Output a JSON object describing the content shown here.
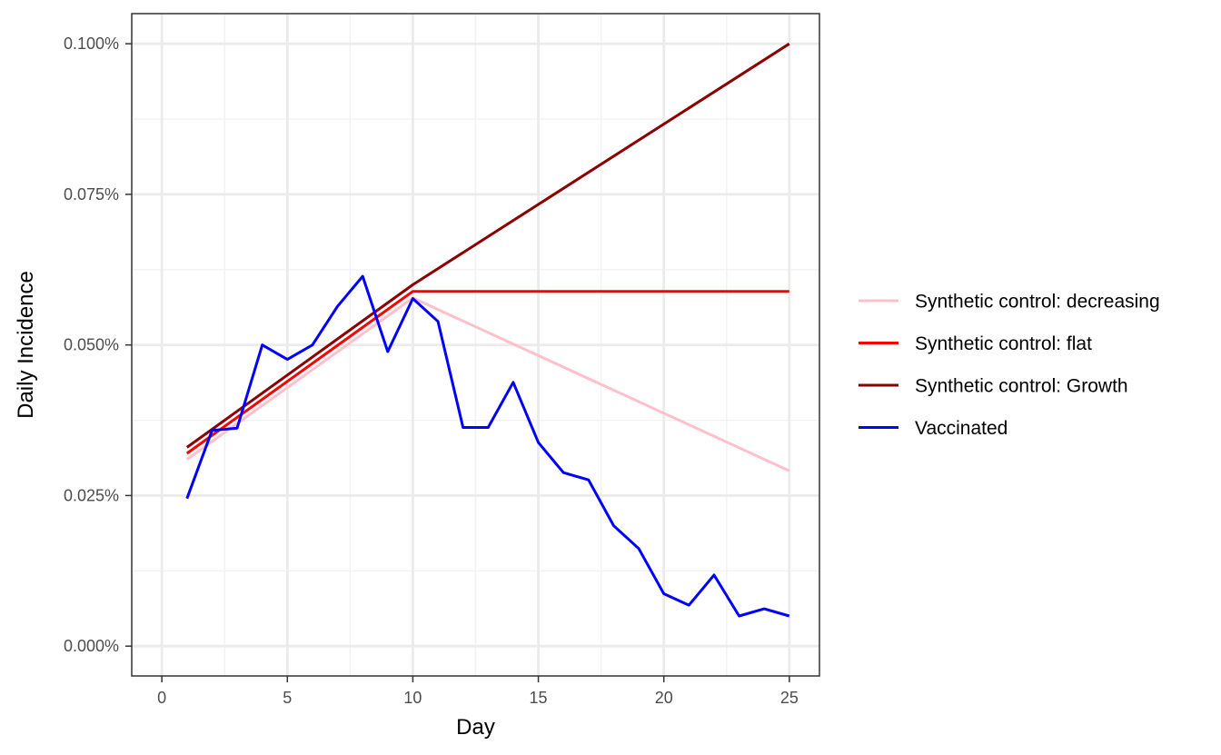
{
  "chart_data": {
    "type": "line",
    "xlabel": "Day",
    "ylabel": "Daily Incidence",
    "xlim": [
      -1.2,
      26.2
    ],
    "ylim": [
      -4.95e-05,
      0.00105
    ],
    "x_ticks": [
      0,
      5,
      10,
      15,
      20,
      25
    ],
    "x_tick_labels": [
      "0",
      "5",
      "10",
      "15",
      "20",
      "25"
    ],
    "y_ticks": [
      0.0,
      0.00025,
      0.0005,
      0.00075,
      0.001
    ],
    "y_tick_labels": [
      "0.000%",
      "0.025%",
      "0.050%",
      "0.075%",
      "0.100%"
    ],
    "grid": true,
    "legend_position": "right",
    "series": [
      {
        "name": "Synthetic control: decreasing",
        "color": "#FFC0CB",
        "x": [
          1,
          10,
          25
        ],
        "y": [
          0.00031,
          0.000578,
          0.000291
        ]
      },
      {
        "name": "Synthetic control: flat",
        "color": "#FF0000",
        "x": [
          1,
          10,
          25
        ],
        "y": [
          0.00032,
          0.000589,
          0.000589
        ]
      },
      {
        "name": "Synthetic control: Growth",
        "color": "#8B0000",
        "x": [
          1,
          10,
          25
        ],
        "y": [
          0.00033,
          0.0006,
          0.001
        ]
      },
      {
        "name": "Vaccinated",
        "color": "#0000FF",
        "x": [
          1,
          2,
          3,
          4,
          5,
          6,
          7,
          8,
          9,
          10,
          11,
          12,
          13,
          14,
          15,
          16,
          17,
          18,
          19,
          20,
          21,
          22,
          23,
          24,
          25
        ],
        "y": [
          0.000245,
          0.000358,
          0.000362,
          0.0005,
          0.000476,
          0.0005,
          0.000564,
          0.000614,
          0.000489,
          0.000577,
          0.000539,
          0.000363,
          0.000363,
          0.000438,
          0.000338,
          0.000288,
          0.000276,
          0.0002,
          0.000162,
          8.7e-05,
          6.8e-05,
          0.000118,
          5e-05,
          6.2e-05,
          5e-05
        ]
      }
    ]
  }
}
